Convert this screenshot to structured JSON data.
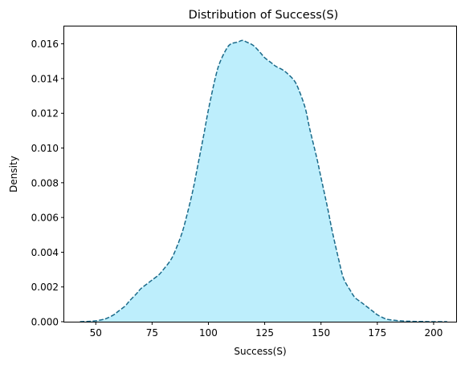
{
  "chart_data": {
    "type": "area",
    "title": "Distribution of Success(S)",
    "xlabel": "Success(S)",
    "ylabel": "Density",
    "xlim": [
      36,
      210
    ],
    "ylim": [
      0,
      0.017
    ],
    "grid": false,
    "x_ticks": [
      50,
      75,
      100,
      125,
      150,
      175,
      200
    ],
    "x_tick_labels": [
      "50",
      "75",
      "100",
      "125",
      "150",
      "175",
      "200"
    ],
    "y_ticks": [
      0,
      0.002,
      0.004,
      0.006,
      0.008,
      0.01,
      0.012,
      0.014,
      0.016
    ],
    "y_tick_labels": [
      "0.000",
      "0.002",
      "0.004",
      "0.006",
      "0.008",
      "0.010",
      "0.012",
      "0.014",
      "0.016"
    ],
    "colors": {
      "fill": "#bdeefc",
      "line": "#1a6a8a"
    },
    "series": [
      {
        "x": [
          43,
          47,
          50,
          53,
          55,
          58,
          60,
          63,
          65,
          68,
          70,
          73,
          75,
          78,
          80,
          83,
          85,
          88,
          90,
          93,
          95,
          98,
          100,
          103,
          105,
          108,
          110,
          113,
          115,
          117,
          120,
          123,
          125,
          128,
          130,
          133,
          135,
          138,
          140,
          143,
          145,
          148,
          150,
          153,
          155,
          158,
          160,
          163,
          165,
          168,
          170,
          173,
          175,
          178,
          180,
          185,
          190,
          195,
          200,
          206
        ],
        "y": [
          0.0,
          2e-05,
          5e-05,
          0.00012,
          0.0002,
          0.0004,
          0.0006,
          0.0009,
          0.0012,
          0.0016,
          0.0019,
          0.0022,
          0.0024,
          0.0027,
          0.003,
          0.0035,
          0.004,
          0.005,
          0.0059,
          0.0075,
          0.0088,
          0.0108,
          0.0122,
          0.014,
          0.0149,
          0.0157,
          0.016,
          0.0161,
          0.0162,
          0.0161,
          0.0159,
          0.0155,
          0.0152,
          0.0149,
          0.0147,
          0.0145,
          0.0143,
          0.0139,
          0.0134,
          0.0123,
          0.0111,
          0.0095,
          0.0083,
          0.0065,
          0.0052,
          0.0035,
          0.0025,
          0.0018,
          0.0014,
          0.0011,
          0.0009,
          0.0006,
          0.0004,
          0.0002,
          0.00012,
          5e-05,
          2e-05,
          1e-05,
          0.0,
          0.0
        ]
      }
    ]
  }
}
